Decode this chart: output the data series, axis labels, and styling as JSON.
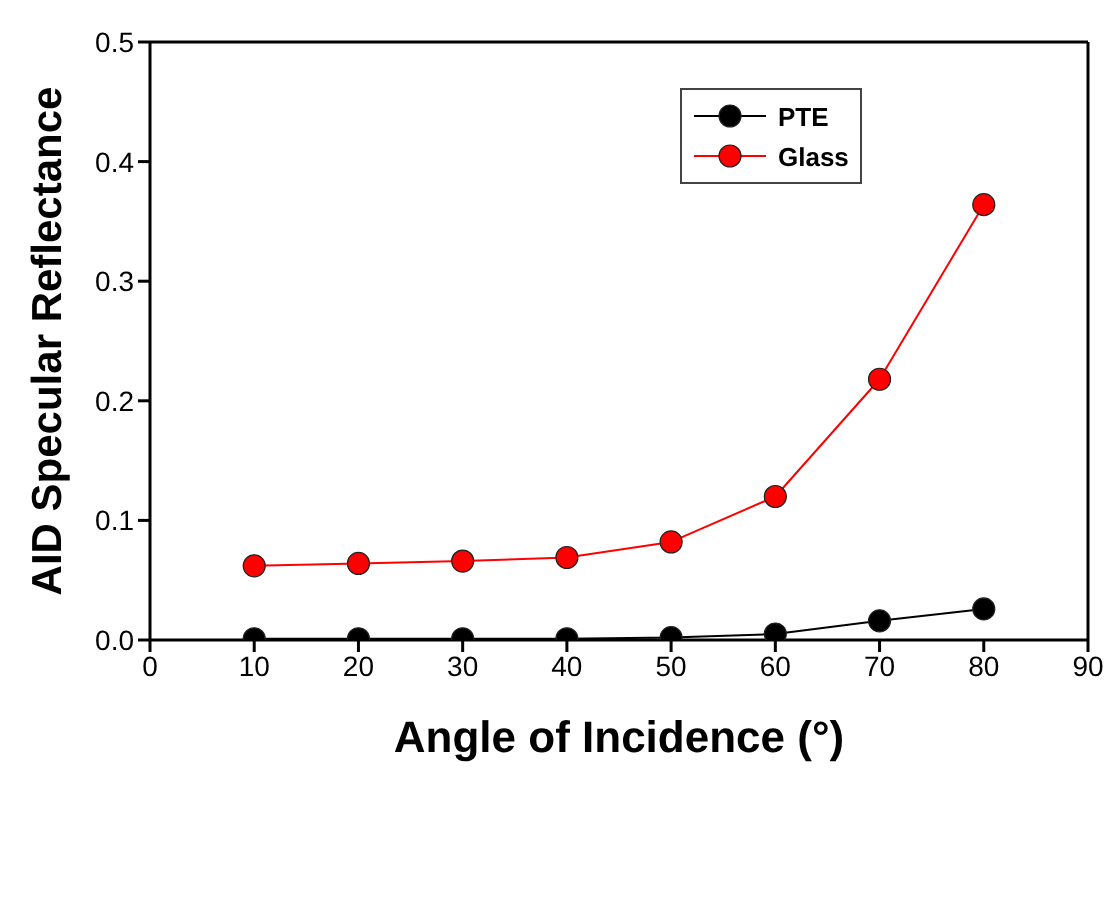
{
  "chart_data": {
    "type": "line",
    "xlabel": "Angle of Incidence (°)",
    "ylabel": "AID Specular Reflectance",
    "x": [
      10,
      20,
      30,
      40,
      50,
      60,
      70,
      80
    ],
    "series": [
      {
        "name": "PTE",
        "color": "#000000",
        "values": [
          0.001,
          0.001,
          0.001,
          0.001,
          0.002,
          0.005,
          0.016,
          0.026
        ]
      },
      {
        "name": "Glass",
        "color": "#ff0000",
        "values": [
          0.062,
          0.064,
          0.066,
          0.069,
          0.082,
          0.12,
          0.218,
          0.364
        ]
      }
    ],
    "xlim": [
      0,
      90
    ],
    "xticks": [
      0,
      10,
      20,
      30,
      40,
      50,
      60,
      70,
      80,
      90
    ],
    "ylim": [
      0,
      0.5
    ],
    "yticks": [
      {
        "value": 0,
        "label": "0.0"
      },
      {
        "value": 0.1,
        "label": "0.1"
      },
      {
        "value": 0.2,
        "label": "0.2"
      },
      {
        "value": 0.3,
        "label": "0.3"
      },
      {
        "value": 0.4,
        "label": "0.4"
      },
      {
        "value": 0.5,
        "label": "0.5"
      }
    ],
    "grid": false,
    "legend": "top right",
    "marker": "circle",
    "line_style": "solid"
  }
}
